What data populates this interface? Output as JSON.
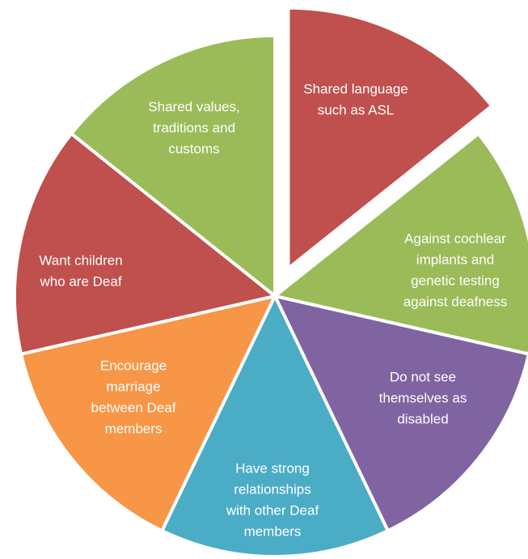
{
  "nodes": [
    {
      "lines": [
        "Shared language",
        "such as ASL"
      ],
      "color": "#c0504d",
      "exploded": true
    },
    {
      "lines": [
        "Against cochlear",
        "implants and",
        "genetic testing",
        "against deafness"
      ],
      "color": "#9bbb59"
    },
    {
      "lines": [
        "Do not see",
        "themselves as",
        "disabled"
      ],
      "color": "#8064a2"
    },
    {
      "lines": [
        "Have strong",
        "relationships",
        "with other Deaf",
        "members"
      ],
      "color": "#4bacc6"
    },
    {
      "lines": [
        "Encourage",
        "marriage",
        "between Deaf",
        "members"
      ],
      "color": "#f79646"
    },
    {
      "lines": [
        "Want children",
        "who are Deaf"
      ],
      "color": "#c0504d"
    },
    {
      "lines": [
        "Shared values,",
        "traditions and",
        "customs"
      ],
      "color": "#9bbb59"
    }
  ]
}
